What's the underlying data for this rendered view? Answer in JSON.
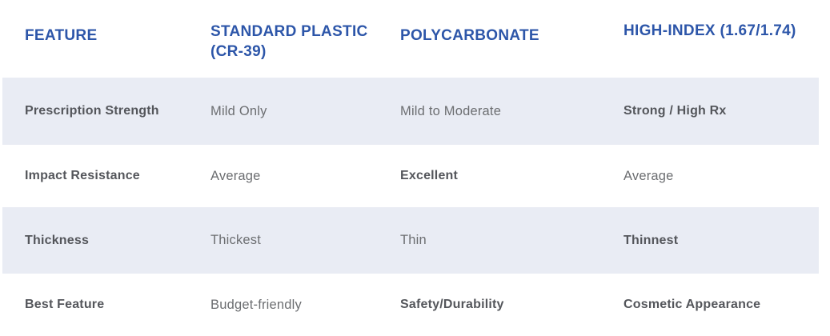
{
  "theme": {
    "accent_blue": "#2d56a9",
    "label_gray": "#54565b",
    "cell_gray": "#6c6e71",
    "stripe_bg": "#e9ecf4",
    "row_bg": "#ffffff"
  },
  "table": {
    "columns": [
      {
        "label": "FEATURE"
      },
      {
        "label": "STANDARD PLASTIC (CR-39)"
      },
      {
        "label": "POLYCARBONATE"
      },
      {
        "label": "HIGH-INDEX (1.67/1.74)"
      }
    ],
    "rows": [
      {
        "feature": "Prescription Strength",
        "cells": [
          {
            "text": "Mild Only",
            "bold": false
          },
          {
            "text": "Mild to Moderate",
            "bold": false
          },
          {
            "text": "Strong / High Rx",
            "bold": true
          }
        ]
      },
      {
        "feature": "Impact Resistance",
        "cells": [
          {
            "text": "Average",
            "bold": false
          },
          {
            "text": "Excellent",
            "bold": true
          },
          {
            "text": "Average",
            "bold": false
          }
        ]
      },
      {
        "feature": "Thickness",
        "cells": [
          {
            "text": "Thickest",
            "bold": false
          },
          {
            "text": "Thin",
            "bold": false
          },
          {
            "text": "Thinnest",
            "bold": true
          }
        ]
      },
      {
        "feature": "Best Feature",
        "cells": [
          {
            "text": "Budget-friendly",
            "bold": false
          },
          {
            "text": "Safety/Durability",
            "bold": true
          },
          {
            "text": "Cosmetic Appearance",
            "bold": true
          }
        ]
      }
    ]
  }
}
